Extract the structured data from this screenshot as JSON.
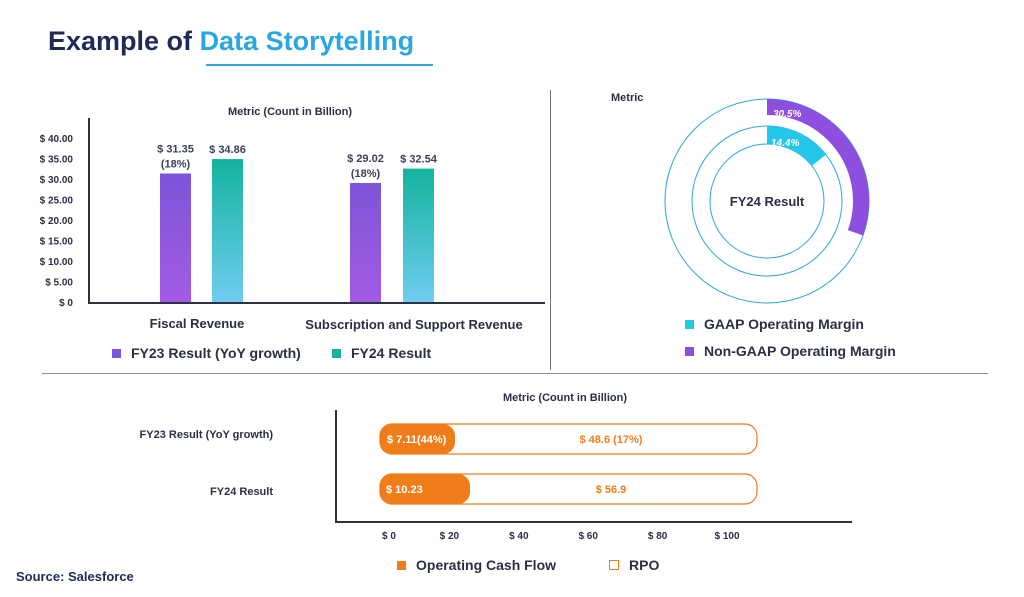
{
  "header": {
    "title_prefix": "Example of",
    "title_highlight": "Data Storytelling"
  },
  "colors": {
    "title_dark": "#1f2a56",
    "title_accent": "#29a8e0",
    "fy23_purple": "#8e4fe0",
    "fy24_teal": "#19b8a6",
    "gaap_cyan": "#22c7ea",
    "nongaap_purple": "#8e4fe0",
    "ocf_orange": "#ef7d1a"
  },
  "source": "Source: Salesforce",
  "chart_data": [
    {
      "type": "bar",
      "title": "Metric (Count in Billion)",
      "categories": [
        "Fiscal Revenue",
        "Subscription and Support Revenue"
      ],
      "series": [
        {
          "name": "FY23 Result (YoY growth)",
          "values": [
            31.35,
            29.02
          ],
          "labels": [
            "$ 31.35",
            "$ 29.02"
          ],
          "growth_labels": [
            "(18%)",
            "(18%)"
          ]
        },
        {
          "name": "FY24 Result",
          "values": [
            34.86,
            32.54
          ],
          "labels": [
            "$ 34.86",
            "$ 32.54"
          ]
        }
      ],
      "ylim": [
        0,
        40
      ],
      "yticks": [
        0,
        5,
        10,
        15,
        20,
        25,
        30,
        35,
        40
      ],
      "ytick_labels": [
        "$ 0",
        "$ 5.00",
        "$ 10.00",
        "$ 15.00",
        "$ 20.00",
        "$ 25.00",
        "$ 30.00",
        "$ 35.00",
        "$ 40.00"
      ],
      "legend": "bottom"
    },
    {
      "type": "pie",
      "title": "Metric",
      "center_label": "FY24 Result",
      "slices": [
        {
          "name": "GAAP Operating Margin",
          "value": 14.4,
          "label": "14.4%"
        },
        {
          "name": "Non-GAAP Operating Margin",
          "value": 30.5,
          "label": "30.5%"
        }
      ],
      "legend": "bottom"
    },
    {
      "type": "bar",
      "orientation": "horizontal",
      "title": "Metric (Count in Billion)",
      "categories": [
        "FY23 Result (YoY growth)",
        "FY24 Result"
      ],
      "series": [
        {
          "name": "Operating Cash Flow",
          "values": [
            7.11,
            10.23
          ],
          "labels": [
            "$ 7.11(44%)",
            "$ 10.23"
          ]
        },
        {
          "name": "RPO",
          "values": [
            48.6,
            56.9
          ],
          "labels": [
            "$ 48.6 (17%)",
            "$ 56.9"
          ]
        }
      ],
      "xlim": [
        0,
        100
      ],
      "xticks": [
        0,
        20,
        40,
        60,
        80,
        100
      ],
      "xtick_labels": [
        "$ 0",
        "$ 20",
        "$ 40",
        "$ 60",
        "$ 80",
        "$ 100"
      ],
      "legend": "bottom"
    }
  ]
}
